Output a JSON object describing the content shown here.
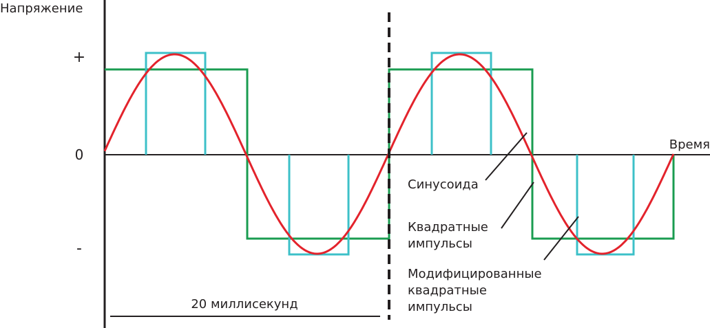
{
  "axes": {
    "y_label": "Напряжение",
    "x_label": "Время",
    "plus": "+",
    "zero": "0",
    "minus": "-"
  },
  "period_label": "20 миллисекунд",
  "labels": {
    "sine": [
      "Синусоида"
    ],
    "square": [
      "Квадратные",
      "импульсы"
    ],
    "modified": [
      "Модифицированные",
      "квадратные",
      "импульсы"
    ]
  }
}
